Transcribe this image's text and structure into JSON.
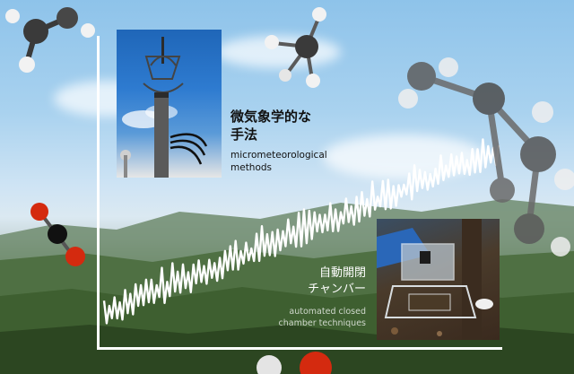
{
  "labels": {
    "micro_jp_line1": "微気象学的な",
    "micro_jp_line2": "手法",
    "micro_en_line1": "micrometeorological",
    "micro_en_line2": "methods",
    "chamber_jp_line1": "自動開閉",
    "chamber_jp_line2": "チャンバー",
    "chamber_en_line1": "automated closed",
    "chamber_en_line2": "chamber techniques"
  },
  "colors": {
    "trace": "#ffffff",
    "axis": "#ffffff",
    "molecule_carbon": "#3a3a3a",
    "molecule_hydrogen": "#f2f2f2",
    "molecule_oxygen": "#d42a0f"
  }
}
